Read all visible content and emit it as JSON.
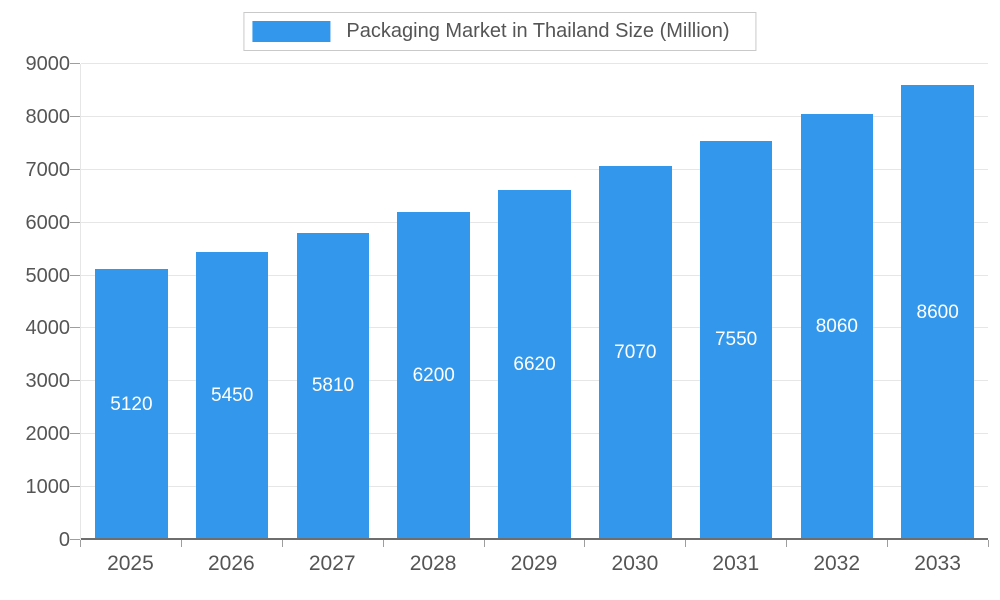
{
  "chart_data": {
    "type": "bar",
    "title": "Packaging Market in Thailand Size (Million)",
    "categories": [
      "2025",
      "2026",
      "2027",
      "2028",
      "2029",
      "2030",
      "2031",
      "2032",
      "2033"
    ],
    "values": [
      5120,
      5450,
      5810,
      6200,
      6620,
      7070,
      7550,
      8060,
      8600
    ],
    "bar_labels": [
      "5120",
      "5450",
      "5810",
      "6200",
      "6620",
      "7070",
      "7550",
      "8060",
      "8600"
    ],
    "xlabel": "",
    "ylabel": "",
    "ylim": [
      0,
      9000
    ],
    "y_ticks": [
      0,
      1000,
      2000,
      3000,
      4000,
      5000,
      6000,
      7000,
      8000,
      9000
    ],
    "grid": true,
    "legend_position": "top",
    "colors": {
      "bar": "#3398EC",
      "bar_label_text": "#FFFFFF",
      "axis_text": "#555555",
      "gridline": "#E6E6E6",
      "axis_line": "#6E6E6E",
      "tick": "#9E9E9E",
      "legend_border": "#C9C9C9",
      "background": "#FFFFFF"
    }
  }
}
